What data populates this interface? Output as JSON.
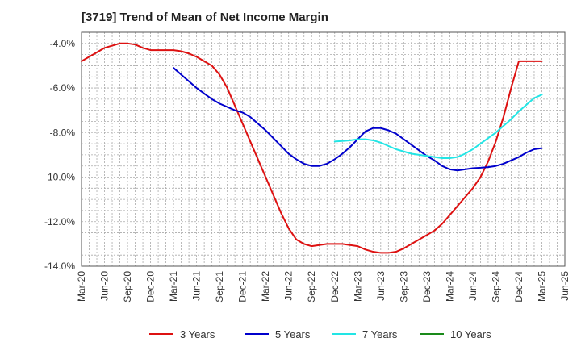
{
  "title": "[3719]  Trend of Mean of Net Income Margin",
  "chart_data": {
    "type": "line",
    "title": "[3719]  Trend of Mean of Net Income Margin",
    "xlabel": "",
    "ylabel": "",
    "x_ticks": [
      "Mar-20",
      "Jun-20",
      "Sep-20",
      "Dec-20",
      "Mar-21",
      "Jun-21",
      "Sep-21",
      "Dec-21",
      "Mar-22",
      "Jun-22",
      "Sep-22",
      "Dec-22",
      "Mar-23",
      "Jun-23",
      "Sep-23",
      "Dec-23",
      "Mar-24",
      "Jun-24",
      "Sep-24",
      "Dec-24",
      "Mar-25",
      "Jun-25"
    ],
    "y_ticks": [
      "-4.0%",
      "-6.0%",
      "-8.0%",
      "-10.0%",
      "-12.0%",
      "-14.0%"
    ],
    "y_tick_values": [
      -4,
      -6,
      -8,
      -10,
      -12,
      -14
    ],
    "ylim": [
      -14,
      -3.5
    ],
    "grid": true,
    "legend_position": "bottom",
    "series": [
      {
        "name": "3 Years",
        "color": "#dd1111",
        "x": [
          "Mar-20",
          "Apr-20",
          "May-20",
          "Jun-20",
          "Jul-20",
          "Aug-20",
          "Sep-20",
          "Oct-20",
          "Nov-20",
          "Dec-20",
          "Jan-21",
          "Feb-21",
          "Mar-21",
          "Apr-21",
          "May-21",
          "Jun-21",
          "Jul-21",
          "Aug-21",
          "Sep-21",
          "Oct-21",
          "Nov-21",
          "Dec-21",
          "Jan-22",
          "Feb-22",
          "Mar-22",
          "Apr-22",
          "May-22",
          "Jun-22",
          "Jul-22",
          "Aug-22",
          "Sep-22",
          "Oct-22",
          "Nov-22",
          "Dec-22",
          "Jan-23",
          "Feb-23",
          "Mar-23",
          "Apr-23",
          "May-23",
          "Jun-23",
          "Jul-23",
          "Aug-23",
          "Sep-23",
          "Oct-23",
          "Nov-23",
          "Dec-23",
          "Jan-24",
          "Feb-24",
          "Mar-24",
          "Apr-24",
          "May-24",
          "Jun-24",
          "Jul-24",
          "Aug-24",
          "Sep-24",
          "Oct-24",
          "Nov-24",
          "Dec-24",
          "Jan-25",
          "Feb-25",
          "Mar-25"
        ],
        "values": [
          -4.8,
          -4.6,
          -4.4,
          -4.2,
          -4.1,
          -4.0,
          -4.0,
          -4.05,
          -4.2,
          -4.3,
          -4.3,
          -4.3,
          -4.3,
          -4.35,
          -4.45,
          -4.6,
          -4.8,
          -5.0,
          -5.4,
          -6.0,
          -6.8,
          -7.6,
          -8.4,
          -9.2,
          -10.0,
          -10.8,
          -11.6,
          -12.3,
          -12.8,
          -13.0,
          -13.1,
          -13.05,
          -13.0,
          -13.0,
          -13.0,
          -13.05,
          -13.1,
          -13.25,
          -13.35,
          -13.4,
          -13.4,
          -13.35,
          -13.2,
          -13.0,
          -12.8,
          -12.6,
          -12.4,
          -12.1,
          -11.7,
          -11.3,
          -10.9,
          -10.5,
          -10.0,
          -9.3,
          -8.4,
          -7.3,
          -6.0,
          -4.8,
          -4.8,
          -4.8,
          -4.8
        ]
      },
      {
        "name": "5 Years",
        "color": "#0000cc",
        "x": [
          "Mar-21",
          "Apr-21",
          "May-21",
          "Jun-21",
          "Jul-21",
          "Aug-21",
          "Sep-21",
          "Oct-21",
          "Nov-21",
          "Dec-21",
          "Jan-22",
          "Feb-22",
          "Mar-22",
          "Apr-22",
          "May-22",
          "Jun-22",
          "Jul-22",
          "Aug-22",
          "Sep-22",
          "Oct-22",
          "Nov-22",
          "Dec-22",
          "Jan-23",
          "Feb-23",
          "Mar-23",
          "Apr-23",
          "May-23",
          "Jun-23",
          "Jul-23",
          "Aug-23",
          "Sep-23",
          "Oct-23",
          "Nov-23",
          "Dec-23",
          "Jan-24",
          "Feb-24",
          "Mar-24",
          "Apr-24",
          "May-24",
          "Jun-24",
          "Jul-24",
          "Aug-24",
          "Sep-24",
          "Oct-24",
          "Nov-24",
          "Dec-24",
          "Jan-25",
          "Feb-25",
          "Mar-25"
        ],
        "values": [
          -5.1,
          -5.4,
          -5.7,
          -6.0,
          -6.25,
          -6.5,
          -6.7,
          -6.85,
          -7.0,
          -7.1,
          -7.3,
          -7.6,
          -7.9,
          -8.25,
          -8.6,
          -8.95,
          -9.2,
          -9.4,
          -9.5,
          -9.5,
          -9.4,
          -9.2,
          -8.95,
          -8.65,
          -8.3,
          -7.95,
          -7.8,
          -7.8,
          -7.9,
          -8.05,
          -8.3,
          -8.55,
          -8.8,
          -9.05,
          -9.25,
          -9.5,
          -9.65,
          -9.7,
          -9.65,
          -9.6,
          -9.58,
          -9.55,
          -9.5,
          -9.4,
          -9.25,
          -9.1,
          -8.9,
          -8.75,
          -8.7
        ]
      },
      {
        "name": "7 Years",
        "color": "#22e5e5",
        "x": [
          "Dec-22",
          "Jan-23",
          "Feb-23",
          "Mar-23",
          "Apr-23",
          "May-23",
          "Jun-23",
          "Jul-23",
          "Aug-23",
          "Sep-23",
          "Oct-23",
          "Nov-23",
          "Dec-23",
          "Jan-24",
          "Feb-24",
          "Mar-24",
          "Apr-24",
          "May-24",
          "Jun-24",
          "Jul-24",
          "Aug-24",
          "Sep-24",
          "Oct-24",
          "Nov-24",
          "Dec-24",
          "Jan-25",
          "Feb-25",
          "Mar-25"
        ],
        "values": [
          -8.4,
          -8.38,
          -8.35,
          -8.3,
          -8.3,
          -8.35,
          -8.45,
          -8.6,
          -8.75,
          -8.85,
          -8.95,
          -9.0,
          -9.05,
          -9.1,
          -9.15,
          -9.15,
          -9.1,
          -8.95,
          -8.75,
          -8.5,
          -8.25,
          -8.0,
          -7.7,
          -7.4,
          -7.05,
          -6.75,
          -6.45,
          -6.3
        ]
      },
      {
        "name": "10 Years",
        "color": "#1a8a1a",
        "x": [],
        "values": []
      }
    ]
  }
}
